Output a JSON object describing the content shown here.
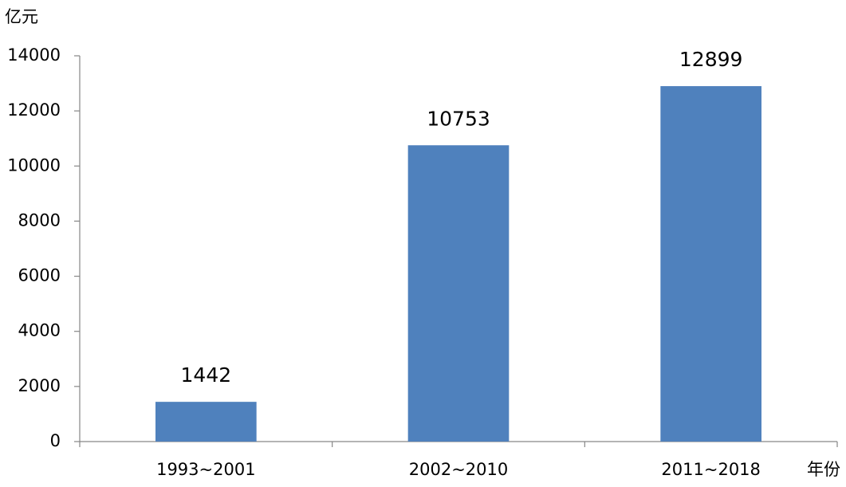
{
  "chart_data": {
    "type": "bar",
    "y_label": "亿元",
    "x_label": "年份",
    "categories": [
      "1993~2001",
      "2002~2010",
      "2011~2018"
    ],
    "values": [
      1442,
      10753,
      12899
    ],
    "color": "#4f81bd",
    "ylim": [
      0,
      14000
    ],
    "yticks": [
      0,
      2000,
      4000,
      6000,
      8000,
      10000,
      12000,
      14000
    ],
    "grid": false,
    "data_labels": true
  }
}
